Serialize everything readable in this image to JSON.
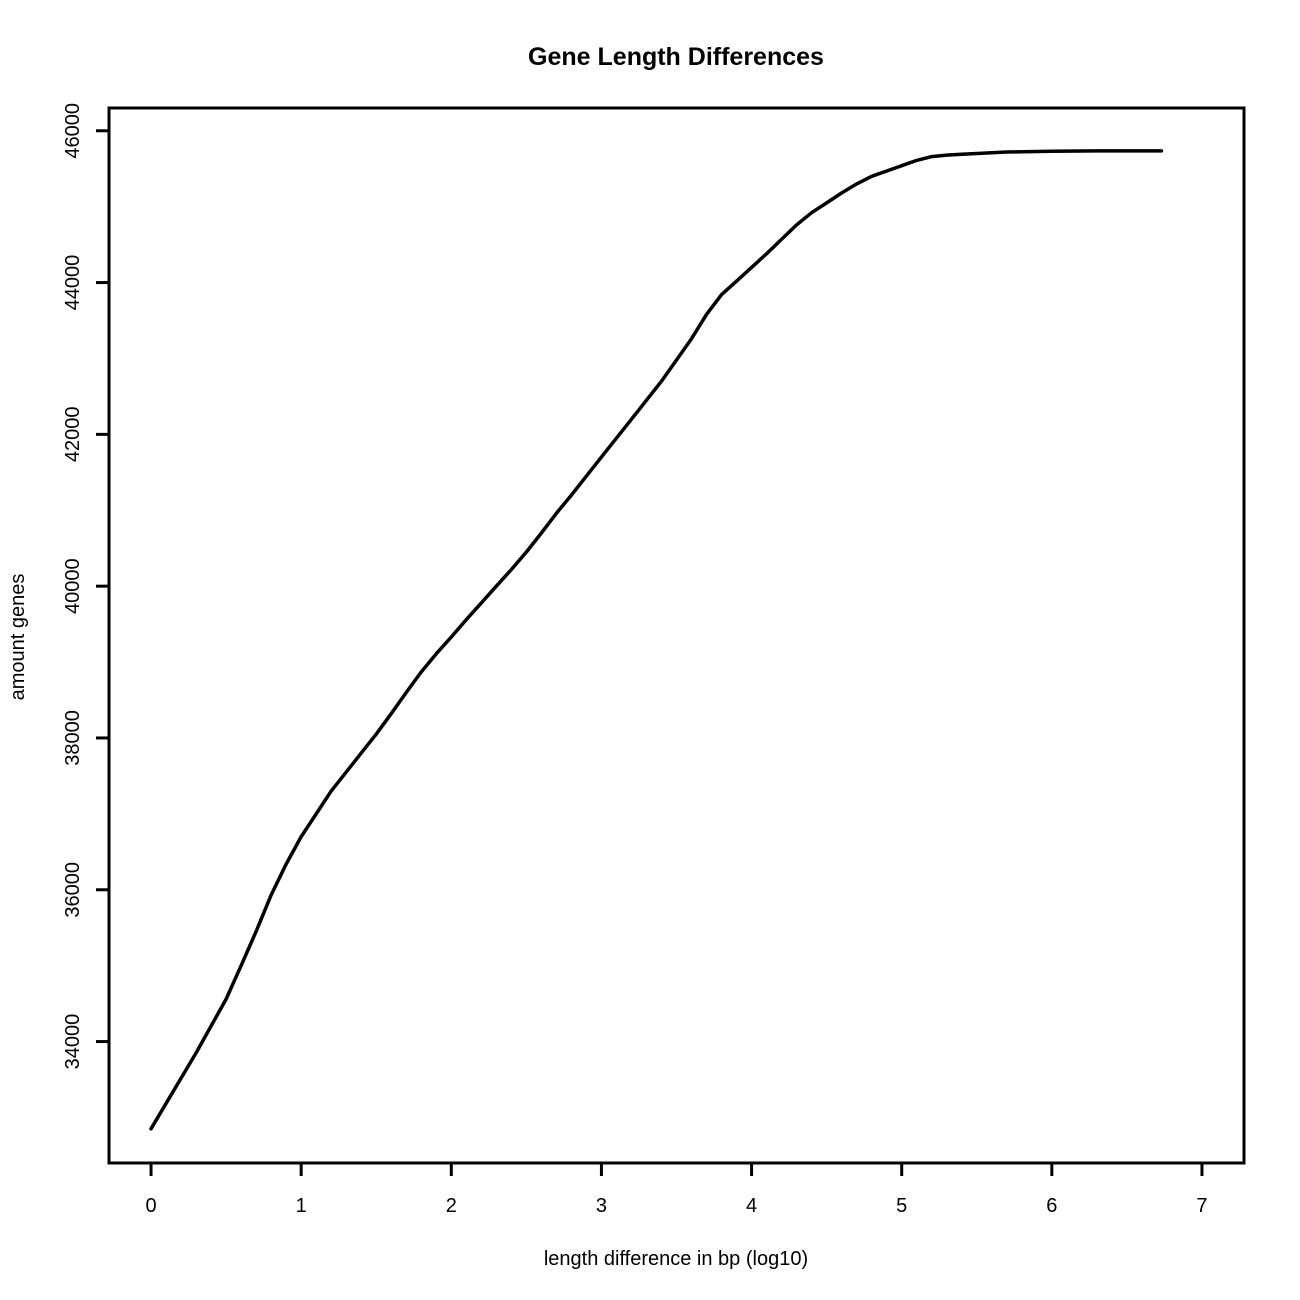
{
  "chart_data": {
    "type": "line",
    "title": "Gene Length Differences",
    "xlabel": "length difference in bp (log10)",
    "ylabel": "amount genes",
    "xlim": [
      -0.28,
      7.28
    ],
    "ylim": [
      32400,
      46300
    ],
    "x_ticks": [
      0,
      1,
      2,
      3,
      4,
      5,
      6,
      7
    ],
    "y_ticks": [
      34000,
      36000,
      38000,
      40000,
      42000,
      44000,
      46000
    ],
    "grid": false,
    "legend": "none",
    "line_color": "#000000",
    "series": [
      {
        "x": [
          0,
          0.3,
          0.5,
          0.6,
          0.7,
          0.8,
          0.9,
          1.0,
          1.1,
          1.2,
          1.3,
          1.4,
          1.5,
          1.6,
          1.7,
          1.8,
          1.9,
          2.0,
          2.1,
          2.2,
          2.3,
          2.4,
          2.5,
          2.6,
          2.7,
          2.8,
          2.9,
          3.0,
          3.1,
          3.2,
          3.3,
          3.4,
          3.5,
          3.6,
          3.7,
          3.8,
          3.9,
          4.0,
          4.1,
          4.2,
          4.3,
          4.4,
          4.5,
          4.6,
          4.7,
          4.8,
          4.9,
          5.0,
          5.1,
          5.2,
          5.3,
          5.4,
          5.5,
          5.7,
          6.0,
          6.3,
          6.73
        ],
        "values": [
          32850,
          33850,
          34560,
          35000,
          35450,
          35930,
          36340,
          36700,
          37000,
          37300,
          37550,
          37800,
          38050,
          38320,
          38600,
          38870,
          39110,
          39330,
          39560,
          39780,
          40000,
          40220,
          40450,
          40700,
          40960,
          41200,
          41450,
          41700,
          41950,
          42200,
          42450,
          42700,
          42980,
          43260,
          43580,
          43840,
          44020,
          44200,
          44380,
          44570,
          44760,
          44920,
          45050,
          45180,
          45300,
          45400,
          45470,
          45540,
          45610,
          45660,
          45680,
          45690,
          45700,
          45720,
          45730,
          45735,
          45735
        ]
      }
    ]
  }
}
